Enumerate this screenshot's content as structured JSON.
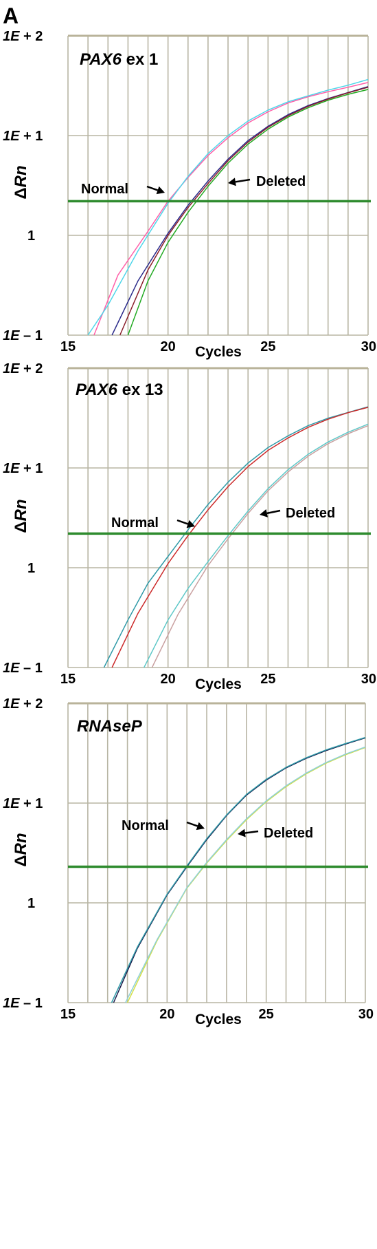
{
  "figure": {
    "panel_label": "A"
  },
  "chart_data": [
    {
      "type": "line",
      "title_italic": "PAX6",
      "title_rest": " ex 1",
      "xlabel": "Cycles",
      "ylabel_delta": "Δ",
      "ylabel_var": "Rn",
      "xlim": [
        15,
        30
      ],
      "ylim": [
        0.1,
        100
      ],
      "yscale": "log",
      "grid": true,
      "x_ticks": [
        "15",
        "20",
        "25",
        "30"
      ],
      "y_ticks": [
        {
          "value": 100,
          "label_main": "1E",
          "label_sign": " + 2"
        },
        {
          "value": 10,
          "label_main": "1E",
          "label_sign": "  + 1"
        },
        {
          "value": 1,
          "label_main": "",
          "label_sign": "1"
        },
        {
          "value": 0.1,
          "label_main": "1E",
          "label_sign": " – 1"
        }
      ],
      "threshold": 2.2,
      "threshold_color": "#2e8b2e",
      "annotations": {
        "normal": "Normal",
        "deleted": "Deleted"
      },
      "series": [
        {
          "color": "#ff5fa8",
          "x": [
            16.3,
            17.5,
            19,
            20,
            21,
            22,
            23,
            24,
            25,
            26,
            27,
            28,
            29,
            30
          ],
          "y": [
            0.1,
            0.4,
            1.1,
            2.2,
            3.8,
            6.3,
            9.5,
            13.4,
            17.3,
            21.2,
            24.5,
            27.5,
            30.5,
            34
          ]
        },
        {
          "color": "#4fd6ea",
          "x": [
            16.0,
            17.0,
            18.5,
            20,
            21,
            22,
            23,
            24,
            25,
            26,
            27,
            28,
            29,
            30
          ],
          "y": [
            0.1,
            0.2,
            0.7,
            2.1,
            3.9,
            6.6,
            10.0,
            14.0,
            18.0,
            21.8,
            25.0,
            28.5,
            32.0,
            36.5
          ]
        },
        {
          "color": "#2a2a8a",
          "x": [
            17.2,
            18.5,
            20,
            21,
            22,
            23,
            24,
            25,
            26,
            27,
            28,
            29,
            30
          ],
          "y": [
            0.1,
            0.35,
            1.05,
            2.0,
            3.5,
            5.8,
            8.9,
            12.4,
            16.2,
            20.0,
            23.5,
            27.0,
            31.0
          ]
        },
        {
          "color": "#8a1e2a",
          "x": [
            17.6,
            19,
            20,
            21,
            22,
            23,
            24,
            25,
            26,
            27,
            28,
            29,
            30
          ],
          "y": [
            0.1,
            0.45,
            1.0,
            1.9,
            3.3,
            5.6,
            8.6,
            12.1,
            15.8,
            19.6,
            23.2,
            26.8,
            30.5
          ]
        },
        {
          "color": "#22aa22",
          "x": [
            18.0,
            19,
            20,
            21,
            22,
            23,
            24,
            25,
            26,
            27,
            28,
            29,
            30
          ],
          "y": [
            0.1,
            0.35,
            0.85,
            1.7,
            3.1,
            5.3,
            8.2,
            11.6,
            15.3,
            19.0,
            22.6,
            25.9,
            29.0
          ]
        }
      ]
    },
    {
      "type": "line",
      "title_italic": "PAX6",
      "title_rest": " ex 13",
      "xlabel": "Cycles",
      "ylabel_delta": "Δ",
      "ylabel_var": "Rn",
      "xlim": [
        15,
        30
      ],
      "ylim": [
        0.1,
        100
      ],
      "yscale": "log",
      "grid": true,
      "x_ticks": [
        "15",
        "20",
        "25",
        "30"
      ],
      "y_ticks": [
        {
          "value": 100,
          "label_main": "1E",
          "label_sign": " + 2"
        },
        {
          "value": 10,
          "label_main": "1E",
          "label_sign": "  + 1"
        },
        {
          "value": 1,
          "label_main": "",
          "label_sign": "1"
        },
        {
          "value": 0.1,
          "label_main": "1E",
          "label_sign": " – 1"
        }
      ],
      "threshold": 2.2,
      "threshold_color": "#2e8b2e",
      "annotations": {
        "normal": "Normal",
        "deleted": "Deleted"
      },
      "series": [
        {
          "color": "#2f9aa8",
          "x": [
            16.8,
            18,
            19,
            20,
            21,
            22,
            23,
            24,
            25,
            26,
            27,
            28,
            29,
            30
          ],
          "y": [
            0.1,
            0.3,
            0.7,
            1.3,
            2.4,
            4.3,
            7.2,
            11.2,
            16.0,
            21.0,
            26.5,
            31.5,
            36.0,
            41.0
          ]
        },
        {
          "color": "#cc2a2a",
          "x": [
            17.2,
            18.5,
            20,
            21,
            22,
            23,
            24,
            25,
            26,
            27,
            28,
            29,
            30
          ],
          "y": [
            0.1,
            0.35,
            1.1,
            2.1,
            3.8,
            6.5,
            10.3,
            15.0,
            20.0,
            25.5,
            30.8,
            35.8,
            40.5
          ]
        },
        {
          "color": "#5fc8c8",
          "x": [
            18.8,
            20,
            21,
            22,
            23,
            24,
            25,
            26,
            27,
            28,
            29,
            30
          ],
          "y": [
            0.1,
            0.3,
            0.62,
            1.15,
            2.1,
            3.7,
            6.2,
            9.6,
            13.7,
            18.2,
            22.8,
            27.5
          ]
        },
        {
          "color": "#c9a0a0",
          "x": [
            19.2,
            20.5,
            22,
            23,
            24,
            25,
            26,
            27,
            28,
            29,
            30
          ],
          "y": [
            0.1,
            0.34,
            1.05,
            1.95,
            3.5,
            5.9,
            9.1,
            13.1,
            17.5,
            22.0,
            26.5
          ]
        }
      ]
    },
    {
      "type": "line",
      "title_italic": "RNAseP",
      "title_rest": "",
      "xlabel": "Cycles",
      "ylabel_delta": "Δ",
      "ylabel_var": "Rn",
      "xlim": [
        15,
        30
      ],
      "ylim": [
        0.1,
        100
      ],
      "yscale": "log",
      "grid": true,
      "x_ticks": [
        "15",
        "20",
        "25",
        "30"
      ],
      "y_ticks": [
        {
          "value": 100,
          "label_main": "1E",
          "label_sign": " + 2"
        },
        {
          "value": 10,
          "label_main": "1E",
          "label_sign": " + 1"
        },
        {
          "value": 1,
          "label_main": "",
          "label_sign": "1"
        },
        {
          "value": 0.1,
          "label_main": "1E",
          "label_sign": " – 1"
        }
      ],
      "threshold": 2.3,
      "threshold_color": "#2e8b2e",
      "annotations": {
        "normal": "Normal",
        "deleted": "Deleted"
      },
      "series": [
        {
          "color": "#1a1a4a",
          "x": [
            17.3,
            18.5,
            20,
            21,
            22,
            23,
            24,
            25,
            26,
            27,
            28,
            29,
            30
          ],
          "y": [
            0.1,
            0.35,
            1.2,
            2.3,
            4.3,
            7.5,
            12.0,
            17.0,
            22.5,
            28.0,
            33.5,
            39.0,
            45.0
          ]
        },
        {
          "color": "#2f9aa8",
          "x": [
            17.2,
            18.5,
            20,
            21,
            22,
            23,
            24,
            25,
            26,
            27,
            28,
            29,
            30
          ],
          "y": [
            0.1,
            0.36,
            1.22,
            2.35,
            4.4,
            7.6,
            12.2,
            17.3,
            22.8,
            28.4,
            34.0,
            39.5,
            45.5
          ]
        },
        {
          "color": "#d4e04a",
          "x": [
            18.0,
            19.5,
            21,
            22,
            23,
            24,
            25,
            26,
            27,
            28,
            29,
            30
          ],
          "y": [
            0.1,
            0.42,
            1.4,
            2.5,
            4.2,
            6.8,
            10.3,
            14.6,
            19.5,
            25.0,
            30.5,
            36.0
          ]
        },
        {
          "color": "#8fd0d8",
          "x": [
            17.9,
            19.5,
            21,
            22,
            23,
            24,
            25,
            26,
            27,
            28,
            29,
            30
          ],
          "y": [
            0.1,
            0.43,
            1.42,
            2.55,
            4.3,
            6.95,
            10.5,
            14.9,
            19.9,
            25.4,
            31.0,
            36.5
          ]
        }
      ]
    }
  ]
}
